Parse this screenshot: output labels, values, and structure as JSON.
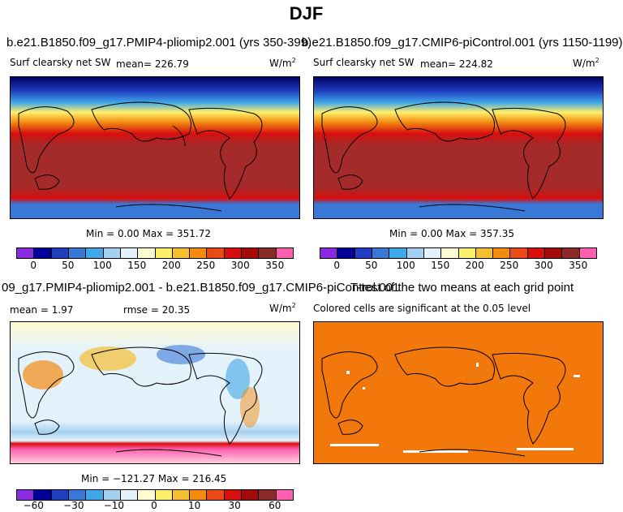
{
  "title": "DJF",
  "panels": {
    "top_left": {
      "title": "b.e21.B1850.f09_g17.PMIP4-pliomip2.001 (yrs 350-399)",
      "variable": "Surf clearsky net SW",
      "mean": "mean= 226.79",
      "units": "W/m",
      "units_exp": "2",
      "minmax": "Min =   0.00 Max = 351.72"
    },
    "top_right": {
      "title": "b.e21.B1850.f09_g17.CMIP6-piControl.001 (yrs 1150-1199)",
      "variable": "Surf clearsky net SW",
      "mean": "mean= 224.82",
      "units": "W/m",
      "units_exp": "2",
      "minmax": "Min =   0.00 Max = 357.35"
    },
    "bottom_left": {
      "title": "09_g17.PMIP4-pliomip2.001 - b.e21.B1850.f09_g17.CMIP6-piControl.001",
      "mean": "mean =   1.97",
      "rmse": "rmse =  20.35",
      "units": "W/m",
      "units_exp": "2",
      "minmax": "Min = −121.27 Max = 216.45"
    },
    "bottom_right": {
      "title": "T-test of the two means at each grid point",
      "subtitle": "Colored cells are significant at the 0.05 level"
    }
  },
  "colorbar_abs": {
    "colors": [
      "#8a2be2",
      "#000099",
      "#1f3fbf",
      "#3a78d8",
      "#3fa7e8",
      "#a6d0f0",
      "#e4f2fb",
      "#fffbd0",
      "#fff06a",
      "#f5bf30",
      "#f28b10",
      "#e84a14",
      "#d90e0e",
      "#a30a0a",
      "#8b2a2a",
      "#ff5fb0"
    ],
    "ticks": [
      "0",
      "50",
      "100",
      "150",
      "200",
      "250",
      "300",
      "350"
    ]
  },
  "colorbar_diff": {
    "colors": [
      "#8a2be2",
      "#000099",
      "#1f3fbf",
      "#3a78d8",
      "#3fa7e8",
      "#a6d0f0",
      "#e4f2fb",
      "#fffbd0",
      "#fff06a",
      "#f5bf30",
      "#f28b10",
      "#e84a14",
      "#d90e0e",
      "#a30a0a",
      "#8b2a2a",
      "#ff5fb0"
    ],
    "ticks": [
      "−60",
      "−30",
      "−10",
      "0",
      "10",
      "30",
      "60"
    ]
  }
}
